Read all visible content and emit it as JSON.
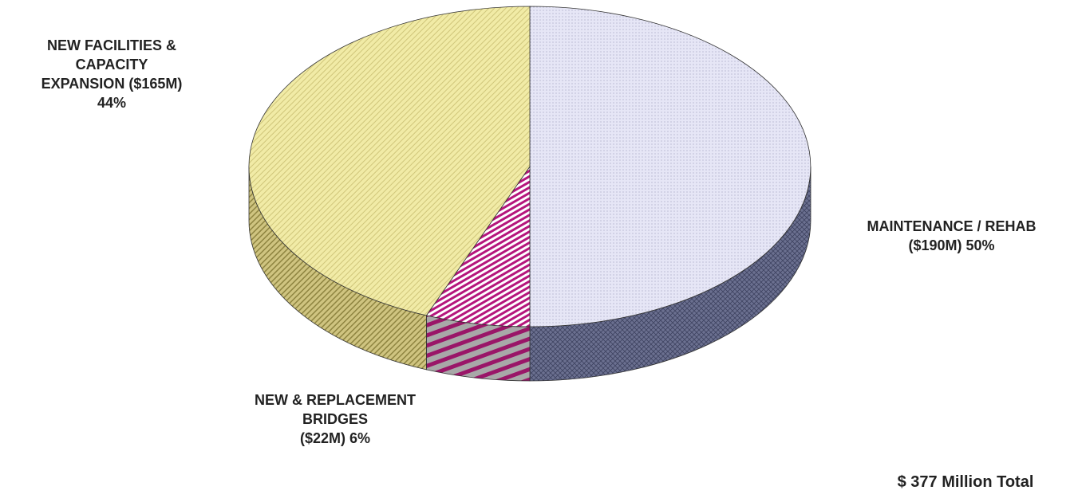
{
  "chart_data": {
    "type": "pie3d",
    "categories": [
      "MAINTENANCE / REHAB",
      "NEW & REPLACEMENT BRIDGES",
      "NEW FACILITIES & CAPACITY EXPANSION"
    ],
    "amounts": [
      190,
      22,
      165
    ],
    "amount_labels": [
      "($190M)",
      "($22M)",
      "($165M)"
    ],
    "values": [
      50,
      6,
      44
    ],
    "value_labels": [
      "50%",
      "6%",
      "44%"
    ],
    "colors": [
      "#e4e4f4",
      "#b5157c",
      "#efe8a2"
    ],
    "total": 377,
    "total_label": "$ 377 Million Total"
  }
}
